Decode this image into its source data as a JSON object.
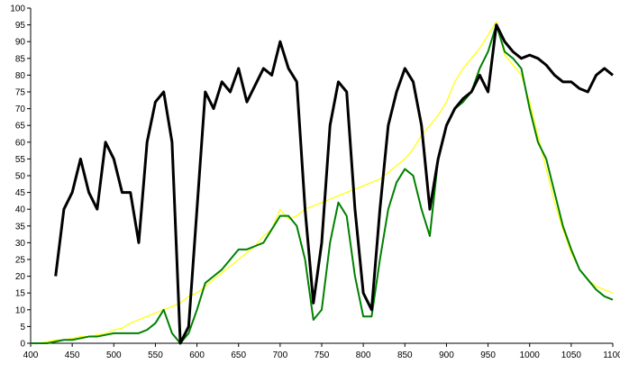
{
  "chart_data": {
    "type": "line",
    "x": [
      400,
      410,
      420,
      430,
      440,
      450,
      460,
      470,
      480,
      490,
      500,
      510,
      520,
      530,
      540,
      550,
      560,
      570,
      580,
      590,
      600,
      610,
      620,
      630,
      640,
      650,
      660,
      670,
      680,
      690,
      700,
      710,
      720,
      730,
      740,
      750,
      760,
      770,
      780,
      790,
      800,
      810,
      820,
      830,
      840,
      850,
      860,
      870,
      880,
      890,
      900,
      910,
      920,
      930,
      940,
      950,
      960,
      970,
      980,
      990,
      1000,
      1010,
      1020,
      1030,
      1040,
      1050,
      1060,
      1070,
      1080,
      1090,
      1100
    ],
    "series": [
      {
        "color": "#ffff00",
        "values": [
          0,
          0,
          0.5,
          1,
          1,
          1.5,
          2,
          2,
          2.5,
          3,
          4,
          4.5,
          6,
          7,
          8,
          9,
          10,
          11,
          12,
          14,
          15,
          17,
          19,
          21,
          23,
          25,
          27,
          29,
          32,
          34,
          40,
          37,
          38,
          40,
          41,
          42,
          43,
          44,
          45,
          46,
          47,
          48,
          49,
          51,
          53,
          55,
          58,
          62,
          65,
          68,
          72,
          78,
          82,
          85,
          88,
          92,
          96,
          86,
          83,
          80,
          72,
          62,
          52,
          42,
          34,
          27,
          22,
          19,
          17,
          16,
          15
        ]
      },
      {
        "color": "#008000",
        "values": [
          0,
          0,
          0,
          0.5,
          1,
          1,
          1.5,
          2,
          2,
          2.5,
          3,
          3,
          3,
          3,
          4,
          6,
          10,
          3,
          0,
          3,
          10,
          18,
          20,
          22,
          25,
          28,
          28,
          29,
          30,
          34,
          38,
          38,
          35,
          25,
          7,
          10,
          30,
          42,
          38,
          20,
          8,
          8,
          25,
          40,
          48,
          52,
          50,
          40,
          32,
          55,
          65,
          70,
          72,
          75,
          82,
          87,
          95,
          87,
          85,
          82,
          70,
          60,
          55,
          45,
          35,
          28,
          22,
          19,
          16,
          14,
          13
        ]
      },
      {
        "color": "#000000",
        "values": [
          null,
          null,
          null,
          20,
          40,
          45,
          55,
          45,
          40,
          60,
          55,
          45,
          45,
          30,
          60,
          72,
          75,
          60,
          0,
          5,
          40,
          75,
          70,
          78,
          75,
          82,
          72,
          77,
          82,
          80,
          90,
          82,
          78,
          40,
          12,
          30,
          65,
          78,
          75,
          40,
          15,
          10,
          40,
          65,
          75,
          82,
          78,
          65,
          40,
          55,
          65,
          70,
          73,
          75,
          80,
          75,
          95,
          90,
          87,
          85,
          86,
          85,
          83,
          80,
          78,
          78,
          76,
          75,
          80,
          82,
          80
        ]
      }
    ],
    "xlim": [
      400,
      1100
    ],
    "xticks": [
      400,
      450,
      500,
      550,
      600,
      650,
      700,
      750,
      800,
      850,
      900,
      950,
      1000,
      1050,
      1100
    ],
    "ylim": [
      0,
      100
    ],
    "yticks": [
      0,
      5,
      10,
      15,
      20,
      25,
      30,
      35,
      40,
      45,
      50,
      55,
      60,
      65,
      70,
      75,
      80,
      85,
      90,
      95,
      100
    ],
    "grid": false
  }
}
